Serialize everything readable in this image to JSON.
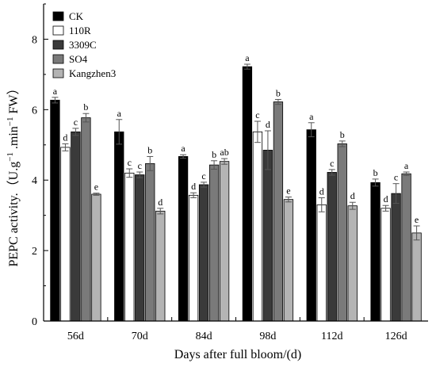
{
  "chart_data": {
    "type": "bar",
    "title": "",
    "xlabel": "Days after full bloom/(d)",
    "ylabel": "PEPC activity.（U.g⁻¹.min⁻¹ FW）",
    "ylabel_parts": {
      "prefix": "PEPC activity.（U.g",
      "sup1": "−1",
      "mid": " .min",
      "sup2": "−1",
      "suffix": " FW）"
    },
    "ylim": [
      0,
      9
    ],
    "yticks": [
      0,
      2,
      4,
      6,
      8
    ],
    "categories": [
      "56d",
      "70d",
      "84d",
      "98d",
      "112d",
      "126d"
    ],
    "legend_position": "top-left",
    "series": [
      {
        "name": "CK",
        "color": "#000000",
        "values": [
          6.27,
          5.37,
          4.67,
          7.22,
          5.43,
          3.93
        ],
        "errors": [
          0.08,
          0.35,
          0.05,
          0.07,
          0.2,
          0.1
        ],
        "labels": [
          "a",
          "a",
          "a",
          "a",
          "a",
          "b"
        ]
      },
      {
        "name": "110R",
        "color": "#ffffff",
        "values": [
          4.93,
          4.2,
          3.57,
          5.37,
          3.3,
          3.2
        ],
        "errors": [
          0.1,
          0.12,
          0.07,
          0.3,
          0.2,
          0.08
        ],
        "labels": [
          "d",
          "c",
          "d",
          "c",
          "d",
          "d"
        ]
      },
      {
        "name": "3309C",
        "color": "#3a3a3a",
        "values": [
          5.37,
          4.15,
          3.87,
          4.85,
          4.22,
          3.62
        ],
        "errors": [
          0.1,
          0.08,
          0.07,
          0.55,
          0.08,
          0.28
        ],
        "labels": [
          "c",
          "c",
          "c",
          "d",
          "c",
          "c"
        ]
      },
      {
        "name": "SO4",
        "color": "#7a7a7a",
        "values": [
          5.77,
          4.47,
          4.43,
          6.22,
          5.03,
          4.18
        ],
        "errors": [
          0.12,
          0.2,
          0.12,
          0.07,
          0.08,
          0.05
        ],
        "labels": [
          "b",
          "b",
          "b",
          "b",
          "b",
          "a"
        ]
      },
      {
        "name": "Kangzhen3",
        "color": "#b4b4b4",
        "values": [
          3.6,
          3.12,
          4.53,
          3.45,
          3.27,
          2.5
        ],
        "errors": [
          0.03,
          0.08,
          0.08,
          0.07,
          0.1,
          0.2
        ],
        "labels": [
          "e",
          "d",
          "ab",
          "e",
          "d",
          "e"
        ]
      }
    ]
  }
}
